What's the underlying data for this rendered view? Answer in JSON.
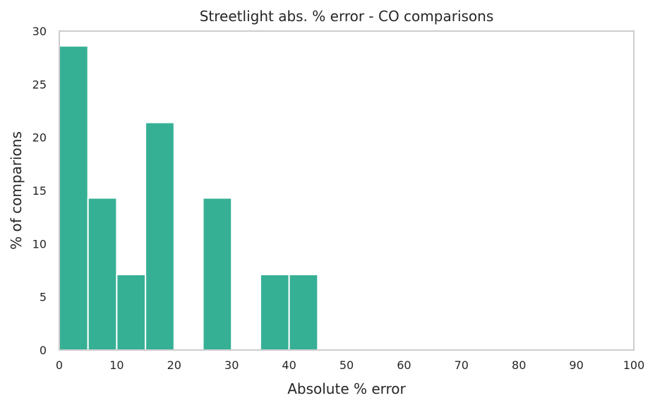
{
  "chart_data": {
    "type": "bar",
    "title": "Streetlight abs. % error - CO comparisons",
    "xlabel": "Absolute % error",
    "ylabel": "% of comparions",
    "xlim": [
      0,
      100
    ],
    "ylim": [
      0,
      30
    ],
    "xticks": [
      0,
      10,
      20,
      30,
      40,
      50,
      60,
      70,
      80,
      90,
      100
    ],
    "yticks": [
      0,
      5,
      10,
      15,
      20,
      25,
      30
    ],
    "bin_width": 5,
    "bins": [
      {
        "x0": 0,
        "x1": 5,
        "value": 28.6
      },
      {
        "x0": 5,
        "x1": 10,
        "value": 14.3
      },
      {
        "x0": 10,
        "x1": 15,
        "value": 7.1
      },
      {
        "x0": 15,
        "x1": 20,
        "value": 21.4
      },
      {
        "x0": 20,
        "x1": 25,
        "value": 0
      },
      {
        "x0": 25,
        "x1": 30,
        "value": 14.3
      },
      {
        "x0": 30,
        "x1": 35,
        "value": 0
      },
      {
        "x0": 35,
        "x1": 40,
        "value": 7.1
      },
      {
        "x0": 40,
        "x1": 45,
        "value": 7.1
      }
    ],
    "bar_color": "#36b095",
    "grid": false,
    "frame_color": "#cccccc"
  }
}
